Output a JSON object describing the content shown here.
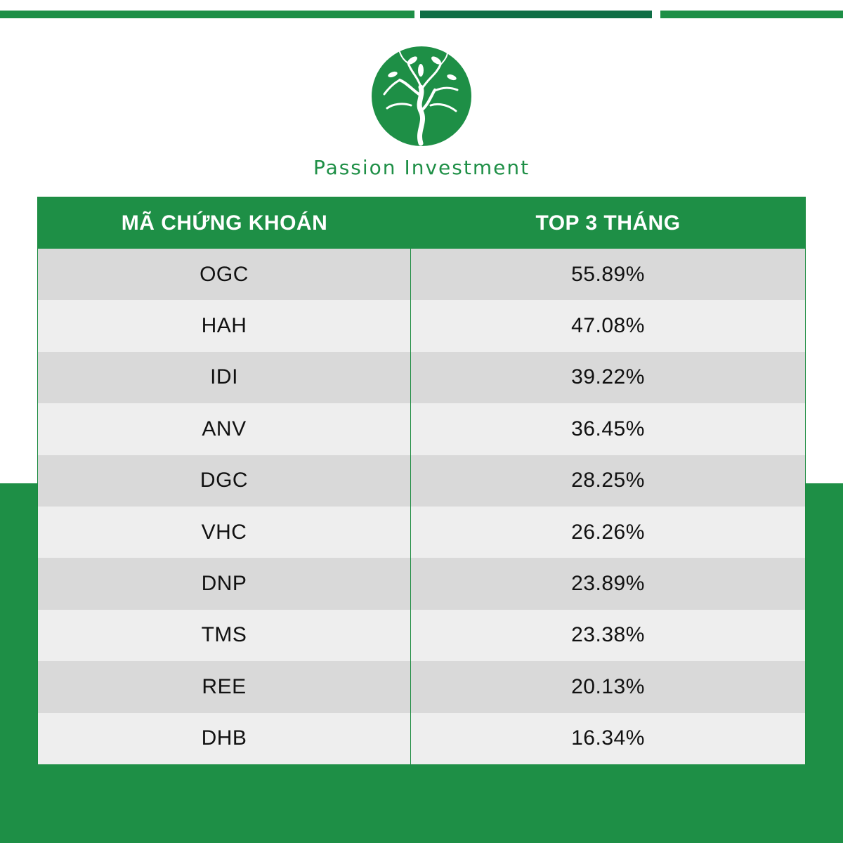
{
  "brand": {
    "name": "Passion Investment",
    "color_primary": "#1e8f46",
    "color_dark": "#0f6e45",
    "logo_icon": "tree-logo-icon"
  },
  "table": {
    "headers": [
      "MÃ CHỨNG KHOÁN",
      "TOP 3 THÁNG"
    ],
    "rows": [
      {
        "ticker": "OGC",
        "value": "55.89%"
      },
      {
        "ticker": "HAH",
        "value": "47.08%"
      },
      {
        "ticker": "IDI",
        "value": "39.22%"
      },
      {
        "ticker": "ANV",
        "value": "36.45%"
      },
      {
        "ticker": "DGC",
        "value": "28.25%"
      },
      {
        "ticker": "VHC",
        "value": "26.26%"
      },
      {
        "ticker": "DNP",
        "value": "23.89%"
      },
      {
        "ticker": "TMS",
        "value": "23.38%"
      },
      {
        "ticker": "REE",
        "value": "20.13%"
      },
      {
        "ticker": "DHB",
        "value": "16.34%"
      }
    ]
  }
}
